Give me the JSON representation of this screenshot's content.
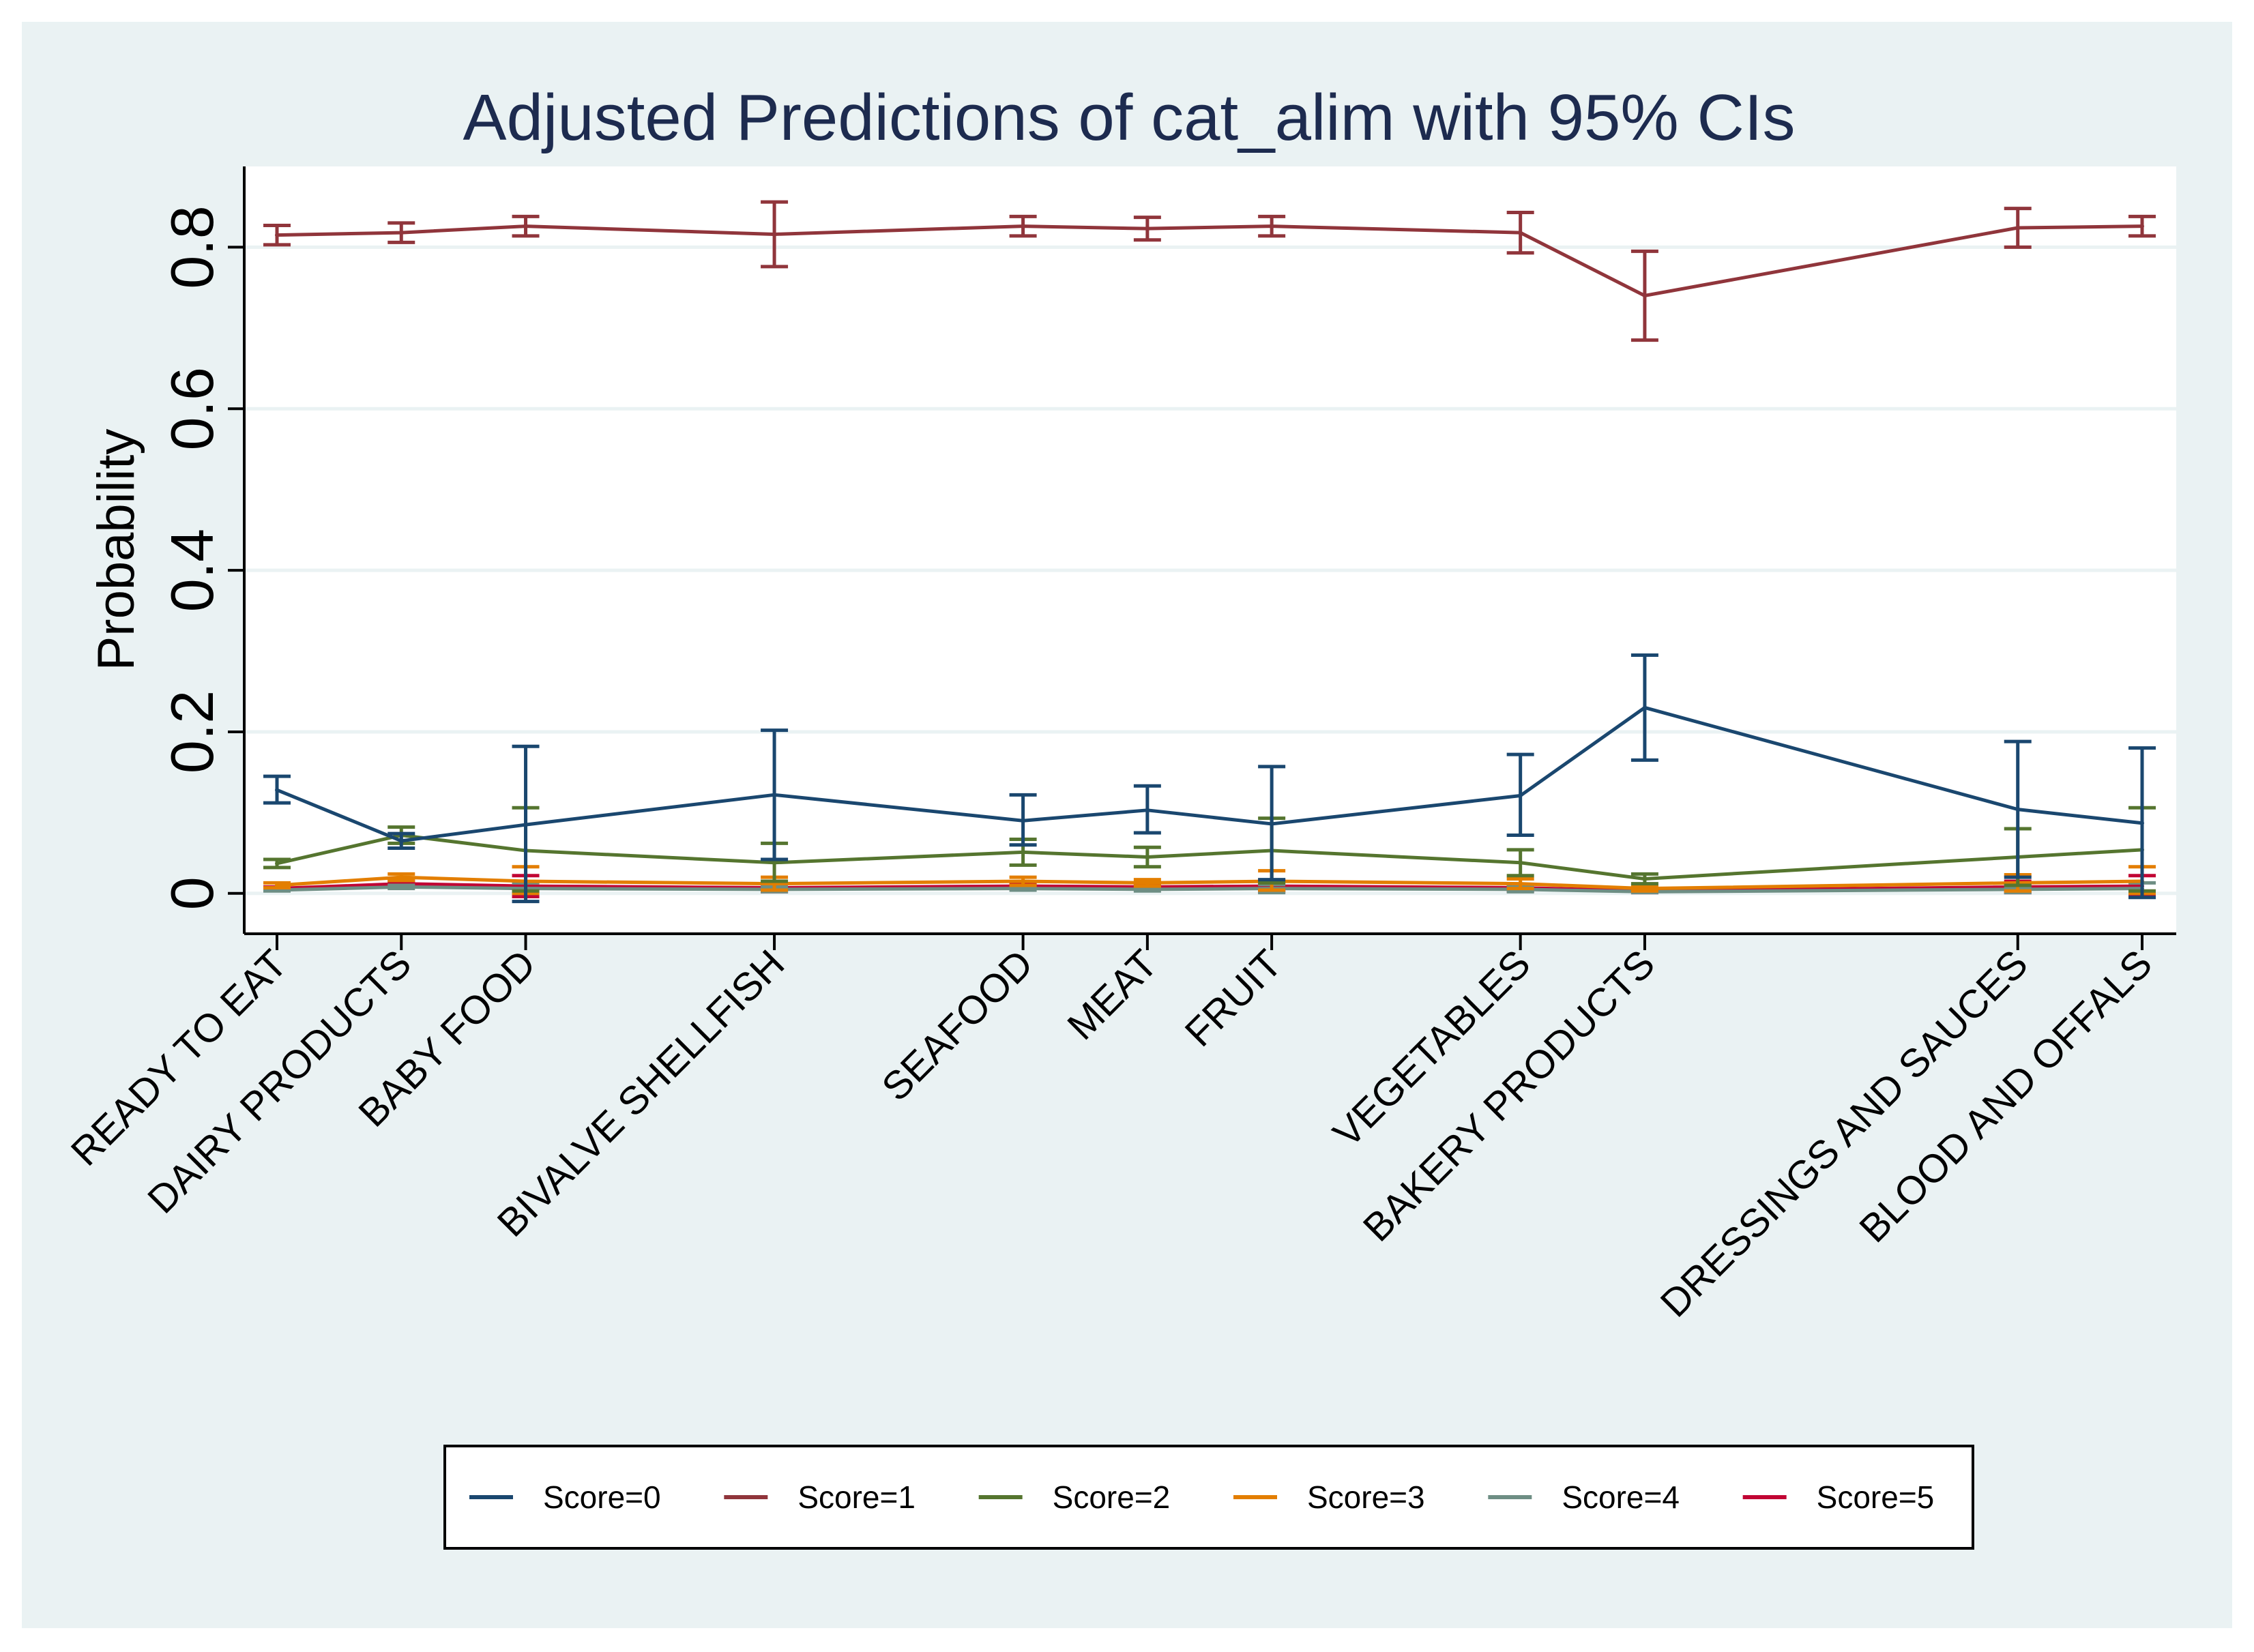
{
  "chart_data": {
    "type": "line",
    "title": "Adjusted Predictions of cat_alim with 95% CIs",
    "xlabel": "",
    "ylabel": "Probability",
    "ylim": [
      -0.05,
      0.9
    ],
    "yticks": [
      0,
      0.2,
      0.4,
      0.6,
      0.8
    ],
    "ytick_labels": [
      "0",
      "0.2",
      "0.4",
      "0.6",
      "0.8"
    ],
    "grid": true,
    "legend_position": "bottom",
    "categories": [
      "READY TO EAT",
      "DAIRY PRODUCTS",
      "BABY FOOD",
      "BIVALVE SHELLFISH",
      "SEAFOOD",
      "MEAT",
      "FRUIT",
      "VEGETABLES",
      "BAKERY PRODUCTS",
      "DRESSINGS AND SAUCES",
      "BLOOD AND OFFALS"
    ],
    "x_values": [
      1,
      2,
      3,
      5,
      7,
      8,
      9,
      11,
      12,
      15,
      16
    ],
    "series": [
      {
        "name": "Score=0",
        "color": "#1a476f",
        "values": [
          0.128,
          0.065,
          0.085,
          0.122,
          0.09,
          0.103,
          0.086,
          0.121,
          0.23,
          0.104,
          0.087
        ],
        "ci_low": [
          0.112,
          0.056,
          -0.01,
          0.042,
          0.06,
          0.075,
          0.017,
          0.072,
          0.165,
          0.02,
          -0.005
        ],
        "ci_high": [
          0.145,
          0.074,
          0.182,
          0.202,
          0.122,
          0.133,
          0.157,
          0.172,
          0.295,
          0.188,
          0.18
        ]
      },
      {
        "name": "Score=1",
        "color": "#90353b",
        "values": [
          0.815,
          0.818,
          0.826,
          0.816,
          0.826,
          0.823,
          0.826,
          0.818,
          0.74,
          0.824,
          0.826
        ],
        "ci_low": [
          0.803,
          0.806,
          0.814,
          0.776,
          0.814,
          0.809,
          0.814,
          0.793,
          0.685,
          0.8,
          0.814
        ],
        "ci_high": [
          0.827,
          0.83,
          0.838,
          0.856,
          0.838,
          0.837,
          0.838,
          0.843,
          0.795,
          0.848,
          0.838
        ]
      },
      {
        "name": "Score=2",
        "color": "#55752f",
        "values": [
          0.037,
          0.072,
          0.053,
          0.038,
          0.051,
          0.045,
          0.053,
          0.038,
          0.018,
          0.045,
          0.054
        ],
        "ci_low": [
          0.032,
          0.062,
          0.003,
          0.015,
          0.035,
          0.033,
          0.013,
          0.022,
          0.012,
          0.01,
          0.003
        ],
        "ci_high": [
          0.042,
          0.082,
          0.106,
          0.062,
          0.067,
          0.057,
          0.093,
          0.054,
          0.024,
          0.08,
          0.106
        ]
      },
      {
        "name": "Score=3",
        "color": "#e37e00",
        "values": [
          0.01,
          0.02,
          0.015,
          0.012,
          0.015,
          0.013,
          0.015,
          0.012,
          0.006,
          0.013,
          0.015
        ],
        "ci_low": [
          0.007,
          0.016,
          0.0,
          0.004,
          0.01,
          0.009,
          0.004,
          0.006,
          0.003,
          0.003,
          0.0
        ],
        "ci_high": [
          0.013,
          0.024,
          0.033,
          0.02,
          0.02,
          0.017,
          0.028,
          0.018,
          0.009,
          0.023,
          0.033
        ]
      },
      {
        "name": "Score=4",
        "color": "#6e8e84",
        "values": [
          0.004,
          0.008,
          0.006,
          0.005,
          0.006,
          0.005,
          0.006,
          0.005,
          0.002,
          0.005,
          0.006
        ],
        "ci_low": [
          0.003,
          0.006,
          0.0,
          0.002,
          0.004,
          0.003,
          0.001,
          0.002,
          0.001,
          0.001,
          0.0
        ],
        "ci_high": [
          0.005,
          0.01,
          0.013,
          0.008,
          0.008,
          0.007,
          0.011,
          0.008,
          0.003,
          0.009,
          0.013
        ]
      },
      {
        "name": "Score=5",
        "color": "#c10534",
        "values": [
          0.006,
          0.012,
          0.009,
          0.007,
          0.009,
          0.008,
          0.009,
          0.007,
          0.003,
          0.008,
          0.009
        ],
        "ci_low": [
          0.004,
          0.009,
          -0.004,
          0.002,
          0.006,
          0.005,
          0.002,
          0.003,
          0.001,
          0.001,
          -0.004
        ],
        "ci_high": [
          0.008,
          0.015,
          0.022,
          0.012,
          0.012,
          0.011,
          0.016,
          0.011,
          0.005,
          0.015,
          0.022
        ]
      }
    ]
  },
  "colors": {
    "outer_background": "#eaf2f3",
    "plot_background": "#ffffff",
    "gridline": "#eaf2f3",
    "title": "#1d2b4f"
  }
}
